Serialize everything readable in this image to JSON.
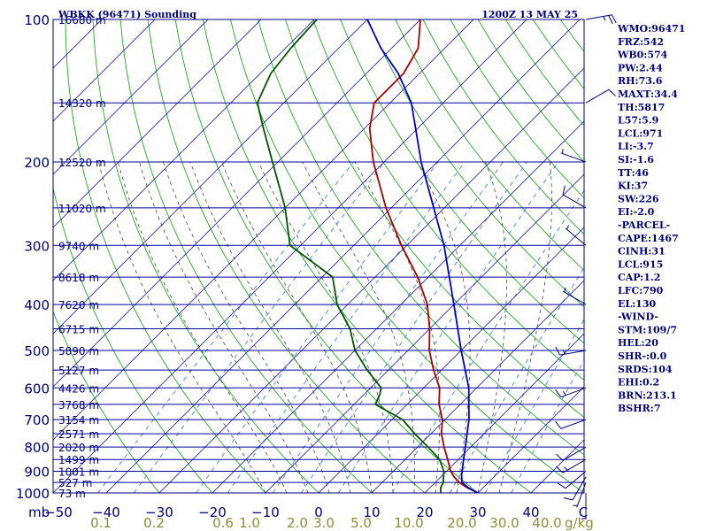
{
  "header": {
    "station": "WBKK (96471) Sounding",
    "time": "1200Z 13 MAY 25"
  },
  "colors": {
    "frame": "#000080",
    "isobar": "#0000a0",
    "isotherm": "#2a2aa0",
    "dry_adiabat": "#22aa22",
    "moist_adiabat": "#444444",
    "mixing_ratio": "#4a90d8",
    "temperature": "#aa0000",
    "dewpoint": "#005500",
    "parcel": "#0000cc",
    "wind_barb": "#000080",
    "mixing_ratio_label": "#8c8c3a"
  },
  "chart_data": {
    "type": "line",
    "title": "WBKK (96471) Sounding",
    "subtitle": "1200Z 13 MAY 25",
    "xlabel": "",
    "ylabel": "mb",
    "x_unit_right": "C",
    "mixing_unit": "g/kg",
    "ylim": [
      1000,
      100
    ],
    "xlim_surface": [
      -50,
      50
    ],
    "skewt": {
      "x_at_left_axis": 60,
      "x_at_right_axis": 660,
      "y_top": 22,
      "y_bottom": 557,
      "x_per_degC": 6,
      "skew_px_per_px": 1.0
    },
    "pressure_ticks": [
      100,
      200,
      300,
      400,
      500,
      600,
      700,
      800,
      900,
      1000
    ],
    "pressure_tick_labels": [
      "100",
      "200",
      "300",
      "400",
      "500",
      "600",
      "700",
      "800",
      "900",
      "1000"
    ],
    "temperature_ticks": [
      -40,
      -30,
      -20,
      -10,
      0,
      10,
      20,
      30,
      40
    ],
    "temperature_tick_labels": [
      "−40",
      "−30",
      "−20",
      "−10",
      "0",
      "10",
      "20",
      "30",
      "40"
    ],
    "temperature_left_label": "−50",
    "mixing_ratio_ticks": [
      0.1,
      0.2,
      0.6,
      1.0,
      2.0,
      3.0,
      5.0,
      10.0,
      20.0,
      30.0,
      40.0
    ],
    "mixing_ratio_tick_labels": [
      "0.1",
      "0.2",
      "0.6",
      "1.0",
      "2.0",
      "3.0",
      "5.0",
      "10.0",
      "20.0",
      "30.0",
      "40.0"
    ],
    "mixing_ratio_label_x_degC": [
      -41,
      -31,
      -18,
      -13,
      -4,
      1,
      8,
      17,
      27,
      35,
      43
    ],
    "heights": [
      {
        "p": 100,
        "label": "16680 m"
      },
      {
        "p": 150,
        "label": "14320 m"
      },
      {
        "p": 200,
        "label": "12520 m"
      },
      {
        "p": 250,
        "label": "11020 m"
      },
      {
        "p": 300,
        "label": "9740 m"
      },
      {
        "p": 350,
        "label": "8618 m"
      },
      {
        "p": 400,
        "label": "7620 m"
      },
      {
        "p": 450,
        "label": "6715 m"
      },
      {
        "p": 500,
        "label": "5890 m"
      },
      {
        "p": 550,
        "label": "5127 m"
      },
      {
        "p": 600,
        "label": "4426 m"
      },
      {
        "p": 650,
        "label": "3768 m"
      },
      {
        "p": 700,
        "label": "3154 m"
      },
      {
        "p": 750,
        "label": "2571 m"
      },
      {
        "p": 800,
        "label": "2020 m"
      },
      {
        "p": 850,
        "label": "1499 m"
      },
      {
        "p": 900,
        "label": "1001 m"
      },
      {
        "p": 950,
        "label": "527 m"
      },
      {
        "p": 1000,
        "label": "73 m"
      }
    ],
    "series": [
      {
        "name": "",
        "role": "temperature",
        "points": [
          {
            "p": 1000,
            "t": 30.0
          },
          {
            "p": 975,
            "t": 27.0
          },
          {
            "p": 950,
            "t": 24.5
          },
          {
            "p": 925,
            "t": 22.5
          },
          {
            "p": 900,
            "t": 20.8
          },
          {
            "p": 850,
            "t": 18.0
          },
          {
            "p": 800,
            "t": 15.0
          },
          {
            "p": 750,
            "t": 12.0
          },
          {
            "p": 700,
            "t": 9.5
          },
          {
            "p": 650,
            "t": 6.0
          },
          {
            "p": 600,
            "t": 3.0
          },
          {
            "p": 550,
            "t": -1.5
          },
          {
            "p": 500,
            "t": -6.0
          },
          {
            "p": 450,
            "t": -10.0
          },
          {
            "p": 400,
            "t": -15.0
          },
          {
            "p": 350,
            "t": -22.0
          },
          {
            "p": 300,
            "t": -31.0
          },
          {
            "p": 250,
            "t": -41.0
          },
          {
            "p": 200,
            "t": -52.0
          },
          {
            "p": 170,
            "t": -59.0
          },
          {
            "p": 150,
            "t": -63.0
          },
          {
            "p": 130,
            "t": -63.0
          },
          {
            "p": 115,
            "t": -65.0
          },
          {
            "p": 100,
            "t": -70.0
          }
        ]
      },
      {
        "name": "",
        "role": "dewpoint",
        "points": [
          {
            "p": 1000,
            "t": 23.0
          },
          {
            "p": 975,
            "t": 22.0
          },
          {
            "p": 950,
            "t": 21.5
          },
          {
            "p": 925,
            "t": 20.5
          },
          {
            "p": 900,
            "t": 19.5
          },
          {
            "p": 850,
            "t": 16.5
          },
          {
            "p": 800,
            "t": 12.0
          },
          {
            "p": 750,
            "t": 7.0
          },
          {
            "p": 700,
            "t": 2.0
          },
          {
            "p": 650,
            "t": -6.0
          },
          {
            "p": 620,
            "t": -7.0
          },
          {
            "p": 600,
            "t": -8.0
          },
          {
            "p": 550,
            "t": -14.0
          },
          {
            "p": 500,
            "t": -20.0
          },
          {
            "p": 450,
            "t": -25.0
          },
          {
            "p": 400,
            "t": -32.0
          },
          {
            "p": 350,
            "t": -38.0
          },
          {
            "p": 300,
            "t": -52.0
          },
          {
            "p": 250,
            "t": -60.0
          },
          {
            "p": 240,
            "t": -62.0
          },
          {
            "p": 200,
            "t": -71.0
          },
          {
            "p": 170,
            "t": -79.0
          },
          {
            "p": 150,
            "t": -85.0
          },
          {
            "p": 130,
            "t": -88.0
          },
          {
            "p": 115,
            "t": -89.0
          },
          {
            "p": 100,
            "t": -89.5
          }
        ]
      },
      {
        "name": "",
        "role": "parcel",
        "points": [
          {
            "p": 1000,
            "t": 30.0
          },
          {
            "p": 975,
            "t": 27.2
          },
          {
            "p": 950,
            "t": 25.0
          },
          {
            "p": 915,
            "t": 23.5
          },
          {
            "p": 850,
            "t": 21.0
          },
          {
            "p": 800,
            "t": 19.0
          },
          {
            "p": 700,
            "t": 14.5
          },
          {
            "p": 600,
            "t": 8.5
          },
          {
            "p": 500,
            "t": 0.0
          },
          {
            "p": 400,
            "t": -10.0
          },
          {
            "p": 300,
            "t": -23.0
          },
          {
            "p": 250,
            "t": -32.0
          },
          {
            "p": 200,
            "t": -43.0
          },
          {
            "p": 150,
            "t": -56.0
          },
          {
            "p": 130,
            "t": -64.0
          },
          {
            "p": 115,
            "t": -72.0
          },
          {
            "p": 100,
            "t": -80.0
          }
        ]
      }
    ],
    "wind": [
      {
        "p": 100,
        "dir": 80,
        "spd": 25
      },
      {
        "p": 150,
        "dir": 60,
        "spd": 10
      },
      {
        "p": 200,
        "dir": 290,
        "spd": 5
      },
      {
        "p": 250,
        "dir": 300,
        "spd": 10
      },
      {
        "p": 300,
        "dir": 310,
        "spd": 5
      },
      {
        "p": 400,
        "dir": 300,
        "spd": 5
      },
      {
        "p": 500,
        "dir": 260,
        "spd": 15
      },
      {
        "p": 600,
        "dir": 250,
        "spd": 15
      },
      {
        "p": 700,
        "dir": 250,
        "spd": 10
      },
      {
        "p": 800,
        "dir": 240,
        "spd": 10
      },
      {
        "p": 850,
        "dir": 240,
        "spd": 15
      },
      {
        "p": 900,
        "dir": 230,
        "spd": 10
      },
      {
        "p": 925,
        "dir": 210,
        "spd": 10
      },
      {
        "p": 950,
        "dir": 200,
        "spd": 5
      },
      {
        "p": 1000,
        "dir": 180,
        "spd": 5
      }
    ]
  },
  "indices": [
    "WMO:96471",
    "FRZ:542",
    "WB0:574",
    "PW:2.44",
    "RH:73.6",
    "MAXT:34.4",
    "TH:5817",
    "L57:5.9",
    "LCL:971",
    "LI:-3.7",
    "SI:-1.6",
    "TT:46",
    "KI:37",
    "SW:226",
    "EI:-2.0",
    "-PARCEL-",
    "CAPE:1467",
    "CINH:31",
    "LCL:915",
    "CAP:1.2",
    "LFC:790",
    "EL:130",
    "-WIND-",
    "STM:109/7",
    "HEL:20",
    "SHR-:0.0",
    "SRDS:104",
    "EHI:0.2",
    "BRN:213.1",
    "BSHR:7"
  ]
}
